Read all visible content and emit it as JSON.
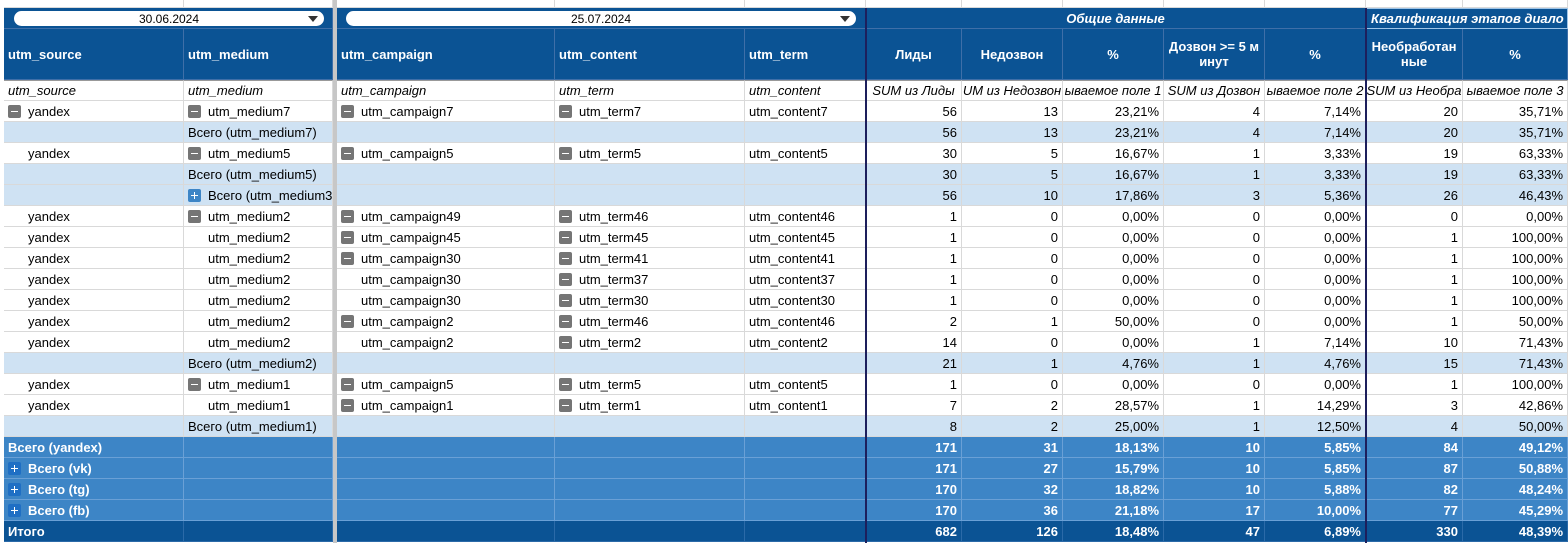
{
  "filters": [
    "30.06.2024",
    "25.07.2024"
  ],
  "groups": [
    "Общие данные",
    "Квалификация этапов диало"
  ],
  "header": [
    "utm_source",
    "utm_medium",
    "utm_campaign",
    "utm_content",
    "utm_term",
    "Лиды",
    "Недозвон",
    "%",
    "Дозвон >= 5 минут",
    "%",
    "Необработанные",
    "%"
  ],
  "fields": [
    "utm_source",
    "utm_medium",
    "utm_campaign",
    "utm_term",
    "utm_content",
    "SUM из Лиды",
    "UM из Недозвон",
    "ываемое поле 1",
    "SUM из Дозвон",
    "ываемое поле 2",
    "SUM из Необра",
    "ываемое поле 3"
  ],
  "rows": [
    [
      "yandex",
      "utm_medium7",
      "utm_campaign7",
      "utm_term7",
      "utm_content7",
      "56",
      "13",
      "23,21%",
      "4",
      "7,14%",
      "20",
      "35,71%"
    ],
    [
      null,
      "Всего (utm_medium7)",
      null,
      null,
      null,
      "56",
      "13",
      "23,21%",
      "4",
      "7,14%",
      "20",
      "35,71%"
    ],
    [
      "yandex",
      "utm_medium5",
      "utm_campaign5",
      "utm_term5",
      "utm_content5",
      "30",
      "5",
      "16,67%",
      "1",
      "3,33%",
      "19",
      "63,33%"
    ],
    [
      null,
      "Всего (utm_medium5)",
      null,
      null,
      null,
      "30",
      "5",
      "16,67%",
      "1",
      "3,33%",
      "19",
      "63,33%"
    ],
    [
      null,
      "Всего (utm_medium3",
      null,
      null,
      null,
      "56",
      "10",
      "17,86%",
      "3",
      "5,36%",
      "26",
      "46,43%"
    ],
    [
      "yandex",
      "utm_medium2",
      "utm_campaign49",
      "utm_term46",
      "utm_content46",
      "1",
      "0",
      "0,00%",
      "0",
      "0,00%",
      "0",
      "0,00%"
    ],
    [
      "yandex",
      "utm_medium2",
      "utm_campaign45",
      "utm_term45",
      "utm_content45",
      "1",
      "0",
      "0,00%",
      "0",
      "0,00%",
      "1",
      "100,00%"
    ],
    [
      "yandex",
      "utm_medium2",
      "utm_campaign30",
      "utm_term41",
      "utm_content41",
      "1",
      "0",
      "0,00%",
      "0",
      "0,00%",
      "1",
      "100,00%"
    ],
    [
      "yandex",
      "utm_medium2",
      "utm_campaign30",
      "utm_term37",
      "utm_content37",
      "1",
      "0",
      "0,00%",
      "0",
      "0,00%",
      "1",
      "100,00%"
    ],
    [
      "yandex",
      "utm_medium2",
      "utm_campaign30",
      "utm_term30",
      "utm_content30",
      "1",
      "0",
      "0,00%",
      "0",
      "0,00%",
      "1",
      "100,00%"
    ],
    [
      "yandex",
      "utm_medium2",
      "utm_campaign2",
      "utm_term46",
      "utm_content46",
      "2",
      "1",
      "50,00%",
      "0",
      "0,00%",
      "1",
      "50,00%"
    ],
    [
      "yandex",
      "utm_medium2",
      "utm_campaign2",
      "utm_term2",
      "utm_content2",
      "14",
      "0",
      "0,00%",
      "1",
      "7,14%",
      "10",
      "71,43%"
    ],
    [
      null,
      "Всего (utm_medium2)",
      null,
      null,
      null,
      "21",
      "1",
      "4,76%",
      "1",
      "4,76%",
      "15",
      "71,43%"
    ],
    [
      "yandex",
      "utm_medium1",
      "utm_campaign5",
      "utm_term5",
      "utm_content5",
      "1",
      "0",
      "0,00%",
      "0",
      "0,00%",
      "1",
      "100,00%"
    ],
    [
      "yandex",
      "utm_medium1",
      "utm_campaign1",
      "utm_term1",
      "utm_content1",
      "7",
      "2",
      "28,57%",
      "1",
      "14,29%",
      "3",
      "42,86%"
    ],
    [
      null,
      "Всего (utm_medium1)",
      null,
      null,
      null,
      "8",
      "2",
      "25,00%",
      "1",
      "12,50%",
      "4",
      "50,00%"
    ],
    [
      "Всего (yandex)",
      null,
      null,
      null,
      null,
      "171",
      "31",
      "18,13%",
      "10",
      "5,85%",
      "84",
      "49,12%"
    ],
    [
      "Всего (vk)",
      null,
      null,
      null,
      null,
      "171",
      "27",
      "15,79%",
      "10",
      "5,85%",
      "87",
      "50,88%"
    ],
    [
      "Всего (tg)",
      null,
      null,
      null,
      null,
      "170",
      "32",
      "18,82%",
      "10",
      "5,88%",
      "82",
      "48,24%"
    ],
    [
      "Всего (fb)",
      null,
      null,
      null,
      null,
      "170",
      "36",
      "21,18%",
      "17",
      "10,00%",
      "77",
      "45,29%"
    ],
    [
      "Итого",
      null,
      null,
      null,
      null,
      "682",
      "126",
      "18,48%",
      "47",
      "6,89%",
      "330",
      "48,39%"
    ]
  ]
}
